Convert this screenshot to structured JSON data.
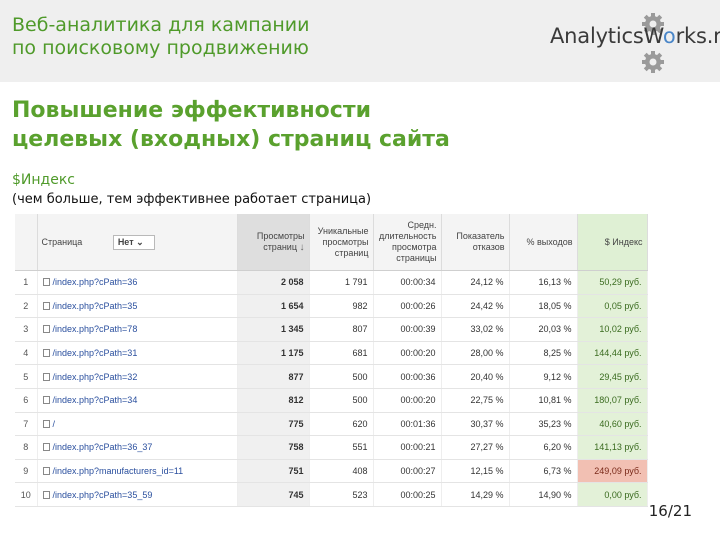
{
  "header": {
    "title_line1": "Веб-аналитика для кампании",
    "title_line2": "по поисковому продвижению",
    "brand_prefix": "AnalyticsW",
    "brand_o": "o",
    "brand_suffix": "rks.ru"
  },
  "slide": {
    "heading_line1": "Повышение эффективности",
    "heading_line2": "целевых (входных) страниц сайта",
    "metric_label": "$Индекс",
    "metric_note": "(чем больше, тем эффективнее работает страница)",
    "page_counter": "16/21"
  },
  "colors": {
    "accent": "#5aa12e",
    "index_good": "#e3f1d8",
    "index_hot": "#f2c0b3"
  },
  "table": {
    "headers": {
      "page": "Страница",
      "filter": "Нет",
      "pageviews": "Просмотры страниц",
      "unique": "Уникальные просмотры страниц",
      "avg_time": "Средн. длительность просмотра страницы",
      "bounce": "Показатель отказов",
      "exit": "% выходов",
      "index": "$ Индекс"
    },
    "rows": [
      {
        "n": "1",
        "page": "/index.php?cPath=36",
        "pv": "2 058",
        "uv": "1 791",
        "time": "00:00:34",
        "bounce": "24,12 %",
        "exit": "16,13 %",
        "idx": "50,29 руб."
      },
      {
        "n": "2",
        "page": "/index.php?cPath=35",
        "pv": "1 654",
        "uv": "982",
        "time": "00:00:26",
        "bounce": "24,42 %",
        "exit": "18,05 %",
        "idx": "0,05 руб."
      },
      {
        "n": "3",
        "page": "/index.php?cPath=78",
        "pv": "1 345",
        "uv": "807",
        "time": "00:00:39",
        "bounce": "33,02 %",
        "exit": "20,03 %",
        "idx": "10,02 руб."
      },
      {
        "n": "4",
        "page": "/index.php?cPath=31",
        "pv": "1 175",
        "uv": "681",
        "time": "00:00:20",
        "bounce": "28,00 %",
        "exit": "8,25 %",
        "idx": "144,44 руб."
      },
      {
        "n": "5",
        "page": "/index.php?cPath=32",
        "pv": "877",
        "uv": "500",
        "time": "00:00:36",
        "bounce": "20,40 %",
        "exit": "9,12 %",
        "idx": "29,45 руб."
      },
      {
        "n": "6",
        "page": "/index.php?cPath=34",
        "pv": "812",
        "uv": "500",
        "time": "00:00:20",
        "bounce": "22,75 %",
        "exit": "10,81 %",
        "idx": "180,07 руб."
      },
      {
        "n": "7",
        "page": "/",
        "pv": "775",
        "uv": "620",
        "time": "00:01:36",
        "bounce": "30,37 %",
        "exit": "35,23 %",
        "idx": "40,60 руб."
      },
      {
        "n": "8",
        "page": "/index.php?cPath=36_37",
        "pv": "758",
        "uv": "551",
        "time": "00:00:21",
        "bounce": "27,27 %",
        "exit": "6,20 %",
        "idx": "141,13 руб."
      },
      {
        "n": "9",
        "page": "/index.php?manufacturers_id=11",
        "pv": "751",
        "uv": "408",
        "time": "00:00:27",
        "bounce": "12,15 %",
        "exit": "6,73 %",
        "idx": "249,09 руб."
      },
      {
        "n": "10",
        "page": "/index.php?cPath=35_59",
        "pv": "745",
        "uv": "523",
        "time": "00:00:25",
        "bounce": "14,29 %",
        "exit": "14,90 %",
        "idx": "0,00 руб."
      }
    ]
  }
}
